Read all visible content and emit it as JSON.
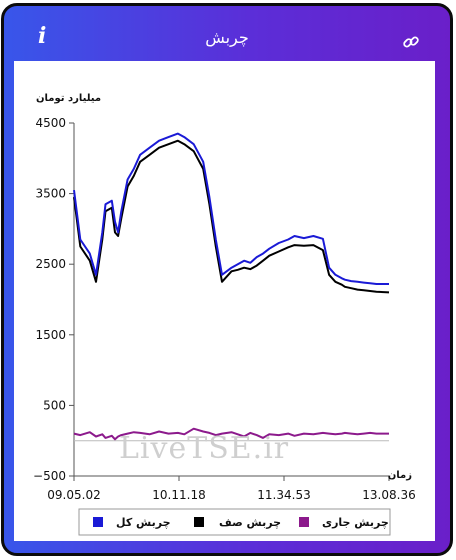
{
  "header": {
    "title": "چربش",
    "info_icon": "info-icon",
    "link_icon": "link-icon"
  },
  "watermark": "LiveTSE.ir",
  "chart_data": {
    "type": "line",
    "ylabel": "میلیارد تومان",
    "xlabel": "زمان",
    "ylim": [
      -500,
      4500
    ],
    "yticks": [
      4500,
      3500,
      2500,
      1500,
      500,
      -500
    ],
    "xticks": [
      "09.05.02",
      "10.11.18",
      "11.34.53",
      "13.08.36"
    ],
    "x": [
      0,
      0.02,
      0.05,
      0.07,
      0.09,
      0.1,
      0.12,
      0.13,
      0.14,
      0.15,
      0.17,
      0.19,
      0.21,
      0.24,
      0.27,
      0.3,
      0.33,
      0.35,
      0.38,
      0.41,
      0.43,
      0.45,
      0.47,
      0.5,
      0.52,
      0.54,
      0.56,
      0.58,
      0.6,
      0.62,
      0.65,
      0.68,
      0.7,
      0.73,
      0.76,
      0.79,
      0.81,
      0.83,
      0.85,
      0.86,
      0.88,
      0.9,
      0.92,
      0.94,
      0.96,
      1.0
    ],
    "legend": {
      "position": "bottom"
    },
    "series": [
      {
        "name": "چربش کل",
        "color": "#1a1ad6",
        "values": [
          3550,
          2850,
          2650,
          2350,
          2950,
          3350,
          3400,
          3100,
          2950,
          3250,
          3700,
          3850,
          4050,
          4150,
          4250,
          4300,
          4350,
          4300,
          4200,
          3950,
          3450,
          2850,
          2350,
          2450,
          2500,
          2550,
          2520,
          2600,
          2650,
          2720,
          2800,
          2850,
          2900,
          2870,
          2900,
          2860,
          2450,
          2350,
          2300,
          2280,
          2260,
          2250,
          2240,
          2230,
          2220,
          2220
        ]
      },
      {
        "name": "چربش صف",
        "color": "#000000",
        "values": [
          3450,
          2750,
          2550,
          2250,
          2850,
          3250,
          3300,
          2950,
          2900,
          3150,
          3600,
          3750,
          3950,
          4050,
          4150,
          4200,
          4250,
          4200,
          4100,
          3850,
          3350,
          2750,
          2250,
          2400,
          2420,
          2450,
          2430,
          2480,
          2550,
          2620,
          2680,
          2740,
          2770,
          2760,
          2770,
          2700,
          2350,
          2250,
          2210,
          2180,
          2160,
          2140,
          2130,
          2120,
          2110,
          2100
        ]
      },
      {
        "name": "چربش جاری",
        "color": "#8c1a8c",
        "values": [
          100,
          80,
          120,
          60,
          90,
          40,
          70,
          20,
          60,
          80,
          100,
          120,
          110,
          90,
          130,
          100,
          110,
          90,
          170,
          130,
          110,
          80,
          100,
          120,
          90,
          60,
          110,
          80,
          40,
          90,
          80,
          100,
          70,
          100,
          90,
          110,
          100,
          90,
          100,
          110,
          100,
          90,
          100,
          110,
          100,
          100
        ]
      }
    ]
  }
}
